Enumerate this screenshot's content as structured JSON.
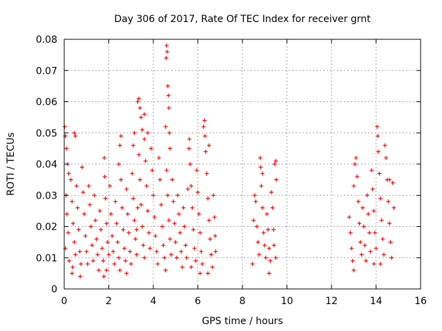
{
  "chart_data": {
    "type": "scatter",
    "title": "Day 306 of 2017, Rate Of TEC Index for receiver grnt",
    "xlabel": "GPS time / hours",
    "ylabel": "ROTI / TECUs",
    "xlim": [
      0,
      16
    ],
    "ylim": [
      0,
      0.08
    ],
    "grid": true,
    "marker": "+",
    "color": "#ff0000",
    "x_ticks": [
      {
        "value": 0,
        "label": "0"
      },
      {
        "value": 2,
        "label": "2"
      },
      {
        "value": 4,
        "label": "4"
      },
      {
        "value": 6,
        "label": "6"
      },
      {
        "value": 8,
        "label": "8"
      },
      {
        "value": 10,
        "label": "10"
      },
      {
        "value": 12,
        "label": "12"
      },
      {
        "value": 14,
        "label": "14"
      },
      {
        "value": 16,
        "label": "16"
      }
    ],
    "y_ticks": [
      {
        "value": 0,
        "label": "0"
      },
      {
        "value": 0.01,
        "label": "0.01"
      },
      {
        "value": 0.02,
        "label": "0.02"
      },
      {
        "value": 0.03,
        "label": "0.03"
      },
      {
        "value": 0.04,
        "label": "0.04"
      },
      {
        "value": 0.05,
        "label": "0.05"
      },
      {
        "value": 0.06,
        "label": "0.06"
      },
      {
        "value": 0.07,
        "label": "0.07"
      },
      {
        "value": 0.08,
        "label": "0.08"
      }
    ],
    "series": [
      {
        "name": "ROTI",
        "points": [
          [
            0.02,
            0.052
          ],
          [
            0.05,
            0.049
          ],
          [
            0.1,
            0.045
          ],
          [
            0.15,
            0.04
          ],
          [
            0.2,
            0.037
          ],
          [
            0.08,
            0.03
          ],
          [
            0.12,
            0.024
          ],
          [
            0.18,
            0.018
          ],
          [
            0.05,
            0.013
          ],
          [
            0.22,
            0.009
          ],
          [
            0.3,
            0.035
          ],
          [
            0.35,
            0.028
          ],
          [
            0.4,
            0.021
          ],
          [
            0.45,
            0.015
          ],
          [
            0.5,
            0.011
          ],
          [
            0.38,
            0.007
          ],
          [
            0.45,
            0.05
          ],
          [
            0.5,
            0.049
          ],
          [
            0.55,
            0.033
          ],
          [
            0.6,
            0.026
          ],
          [
            0.65,
            0.019
          ],
          [
            0.7,
            0.012
          ],
          [
            0.75,
            0.008
          ],
          [
            0.8,
            0.039
          ],
          [
            0.85,
            0.031
          ],
          [
            0.9,
            0.024
          ],
          [
            0.95,
            0.017
          ],
          [
            1.0,
            0.012
          ],
          [
            1.05,
            0.008
          ],
          [
            0.72,
            0.004
          ],
          [
            1.1,
            0.033
          ],
          [
            1.15,
            0.027
          ],
          [
            1.2,
            0.02
          ],
          [
            1.25,
            0.014
          ],
          [
            1.3,
            0.009
          ],
          [
            1.35,
            0.03
          ],
          [
            1.4,
            0.022
          ],
          [
            1.45,
            0.016
          ],
          [
            1.5,
            0.011
          ],
          [
            1.55,
            0.006
          ],
          [
            1.6,
            0.025
          ],
          [
            1.65,
            0.019
          ],
          [
            1.7,
            0.013
          ],
          [
            1.75,
            0.009
          ],
          [
            1.8,
            0.042
          ],
          [
            1.82,
            0.036
          ],
          [
            1.85,
            0.029
          ],
          [
            1.9,
            0.021
          ],
          [
            1.95,
            0.015
          ],
          [
            2.0,
            0.011
          ],
          [
            1.78,
            0.004
          ],
          [
            1.9,
            0.006
          ],
          [
            2.05,
            0.033
          ],
          [
            2.1,
            0.024
          ],
          [
            2.15,
            0.017
          ],
          [
            2.2,
            0.012
          ],
          [
            2.25,
            0.008
          ],
          [
            2.3,
            0.028
          ],
          [
            2.35,
            0.021
          ],
          [
            2.4,
            0.015
          ],
          [
            2.45,
            0.01
          ],
          [
            2.5,
            0.006
          ],
          [
            2.45,
            0.04
          ],
          [
            2.55,
            0.035
          ],
          [
            2.6,
            0.026
          ],
          [
            2.65,
            0.019
          ],
          [
            2.7,
            0.013
          ],
          [
            2.75,
            0.009
          ],
          [
            2.5,
            0.046
          ],
          [
            2.55,
            0.049
          ],
          [
            2.8,
            0.032
          ],
          [
            2.85,
            0.024
          ],
          [
            2.9,
            0.018
          ],
          [
            2.95,
            0.012
          ],
          [
            3.0,
            0.008
          ],
          [
            3.05,
            0.037
          ],
          [
            3.1,
            0.029
          ],
          [
            3.15,
            0.022
          ],
          [
            3.2,
            0.016
          ],
          [
            3.25,
            0.011
          ],
          [
            3.1,
            0.046
          ],
          [
            3.15,
            0.05
          ],
          [
            3.3,
            0.06
          ],
          [
            3.35,
            0.061
          ],
          [
            3.4,
            0.058
          ],
          [
            3.45,
            0.055
          ],
          [
            3.35,
            0.043
          ],
          [
            3.4,
            0.035
          ],
          [
            3.45,
            0.027
          ],
          [
            3.5,
            0.02
          ],
          [
            3.55,
            0.014
          ],
          [
            3.6,
            0.01
          ],
          [
            3.5,
            0.051
          ],
          [
            3.6,
            0.048
          ],
          [
            3.65,
            0.041
          ],
          [
            3.7,
            0.033
          ],
          [
            3.75,
            0.025
          ],
          [
            3.8,
            0.018
          ],
          [
            3.85,
            0.013
          ],
          [
            3.6,
            0.056
          ],
          [
            3.9,
            0.045
          ],
          [
            3.95,
            0.038
          ],
          [
            4.0,
            0.03
          ],
          [
            4.05,
            0.023
          ],
          [
            4.1,
            0.017
          ],
          [
            4.15,
            0.012
          ],
          [
            4.2,
            0.008
          ],
          [
            3.75,
            0.05
          ],
          [
            3.3,
            0.026
          ],
          [
            3.25,
            0.019
          ],
          [
            4.25,
            0.042
          ],
          [
            4.3,
            0.035
          ],
          [
            4.35,
            0.027
          ],
          [
            4.4,
            0.02
          ],
          [
            4.45,
            0.014
          ],
          [
            4.5,
            0.01
          ],
          [
            4.55,
            0.052
          ],
          [
            4.6,
            0.078
          ],
          [
            4.62,
            0.076
          ],
          [
            4.58,
            0.074
          ],
          [
            4.65,
            0.065
          ],
          [
            4.68,
            0.062
          ],
          [
            4.7,
            0.058
          ],
          [
            4.72,
            0.05
          ],
          [
            4.75,
            0.045
          ],
          [
            4.6,
            0.038
          ],
          [
            4.65,
            0.03
          ],
          [
            4.7,
            0.022
          ],
          [
            4.75,
            0.016
          ],
          [
            4.8,
            0.011
          ],
          [
            4.85,
            0.035
          ],
          [
            4.9,
            0.028
          ],
          [
            4.95,
            0.021
          ],
          [
            5.0,
            0.015
          ],
          [
            5.05,
            0.01
          ],
          [
            5.1,
            0.03
          ],
          [
            5.15,
            0.024
          ],
          [
            5.2,
            0.018
          ],
          [
            5.25,
            0.012
          ],
          [
            5.3,
            0.007
          ],
          [
            4.55,
            0.006
          ],
          [
            5.35,
            0.026
          ],
          [
            5.4,
            0.02
          ],
          [
            5.45,
            0.014
          ],
          [
            5.5,
            0.01
          ],
          [
            5.55,
            0.032
          ],
          [
            5.6,
            0.045
          ],
          [
            5.62,
            0.048
          ],
          [
            5.65,
            0.04
          ],
          [
            5.7,
            0.033
          ],
          [
            5.75,
            0.026
          ],
          [
            5.8,
            0.019
          ],
          [
            5.85,
            0.013
          ],
          [
            5.9,
            0.009
          ],
          [
            5.7,
            0.007
          ],
          [
            5.95,
            0.038
          ],
          [
            6.0,
            0.031
          ],
          [
            6.05,
            0.024
          ],
          [
            6.1,
            0.018
          ],
          [
            6.15,
            0.012
          ],
          [
            6.2,
            0.008
          ],
          [
            6.25,
            0.052
          ],
          [
            6.3,
            0.054
          ],
          [
            6.32,
            0.049
          ],
          [
            6.35,
            0.044
          ],
          [
            6.4,
            0.037
          ],
          [
            6.45,
            0.029
          ],
          [
            6.5,
            0.022
          ],
          [
            6.55,
            0.016
          ],
          [
            6.6,
            0.011
          ],
          [
            6.65,
            0.007
          ],
          [
            6.5,
            0.046
          ],
          [
            6.7,
            0.03
          ],
          [
            6.75,
            0.023
          ],
          [
            6.78,
            0.017
          ],
          [
            6.8,
            0.012
          ],
          [
            6.1,
            0.005
          ],
          [
            6.45,
            0.005
          ],
          [
            0.35,
            0.005
          ],
          [
            2.8,
            0.005
          ],
          [
            8.45,
            0.008
          ],
          [
            8.5,
            0.022
          ],
          [
            8.55,
            0.03
          ],
          [
            8.6,
            0.028
          ],
          [
            8.65,
            0.02
          ],
          [
            8.7,
            0.015
          ],
          [
            8.75,
            0.011
          ],
          [
            8.8,
            0.042
          ],
          [
            8.82,
            0.039
          ],
          [
            8.85,
            0.033
          ],
          [
            8.9,
            0.026
          ],
          [
            8.95,
            0.018
          ],
          [
            9.0,
            0.014
          ],
          [
            9.05,
            0.01
          ],
          [
            9.1,
            0.024
          ],
          [
            9.15,
            0.019
          ],
          [
            9.2,
            0.013
          ],
          [
            9.25,
            0.009
          ],
          [
            9.3,
            0.031
          ],
          [
            9.35,
            0.026
          ],
          [
            9.4,
            0.019
          ],
          [
            9.42,
            0.014
          ],
          [
            9.45,
            0.04
          ],
          [
            9.5,
            0.041
          ],
          [
            9.52,
            0.035
          ],
          [
            9.5,
            0.01
          ],
          [
            8.9,
            0.037
          ],
          [
            9.2,
            0.005
          ],
          [
            12.8,
            0.023
          ],
          [
            12.85,
            0.018
          ],
          [
            12.9,
            0.013
          ],
          [
            12.95,
            0.009
          ],
          [
            13.0,
            0.033
          ],
          [
            13.05,
            0.04
          ],
          [
            13.1,
            0.042
          ],
          [
            13.15,
            0.036
          ],
          [
            13.2,
            0.028
          ],
          [
            13.25,
            0.021
          ],
          [
            13.3,
            0.015
          ],
          [
            13.35,
            0.011
          ],
          [
            13.4,
            0.026
          ],
          [
            13.45,
            0.02
          ],
          [
            13.5,
            0.014
          ],
          [
            13.55,
            0.009
          ],
          [
            13.6,
            0.03
          ],
          [
            13.65,
            0.024
          ],
          [
            13.7,
            0.018
          ],
          [
            13.75,
            0.012
          ],
          [
            13.8,
            0.038
          ],
          [
            13.85,
            0.032
          ],
          [
            13.9,
            0.025
          ],
          [
            13.95,
            0.018
          ],
          [
            14.0,
            0.013
          ],
          [
            14.05,
            0.052
          ],
          [
            14.08,
            0.049
          ],
          [
            14.1,
            0.044
          ],
          [
            14.15,
            0.037
          ],
          [
            14.2,
            0.029
          ],
          [
            14.25,
            0.022
          ],
          [
            14.3,
            0.016
          ],
          [
            14.35,
            0.011
          ],
          [
            14.4,
            0.046
          ],
          [
            14.45,
            0.042
          ],
          [
            14.5,
            0.035
          ],
          [
            14.55,
            0.028
          ],
          [
            14.6,
            0.021
          ],
          [
            14.65,
            0.015
          ],
          [
            14.7,
            0.01
          ],
          [
            14.75,
            0.034
          ],
          [
            14.8,
            0.026
          ],
          [
            13.9,
            0.008
          ],
          [
            14.2,
            0.008
          ],
          [
            13.0,
            0.006
          ],
          [
            14.6,
            0.035
          ]
        ]
      }
    ]
  }
}
